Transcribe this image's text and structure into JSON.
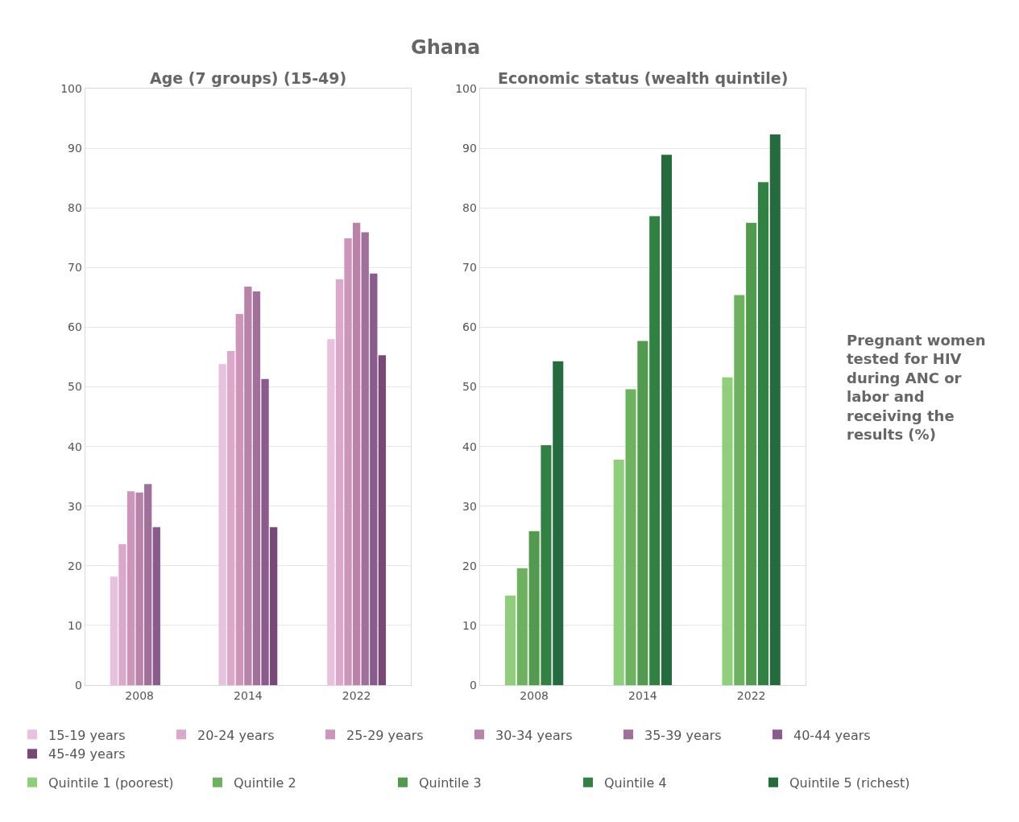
{
  "chart_data": [
    {
      "type": "bar",
      "title": "Ghana",
      "subtitle": "Age (7 groups) (15-49)",
      "categories": [
        "2008",
        "2014",
        "2022"
      ],
      "series": [
        {
          "name": "15-19 years",
          "color": "#e8c1de",
          "values": [
            18.2,
            53.8,
            58.0
          ]
        },
        {
          "name": "20-24 years",
          "color": "#dba8cb",
          "values": [
            23.6,
            56.0,
            68.0
          ]
        },
        {
          "name": "25-29 years",
          "color": "#cc95b9",
          "values": [
            32.5,
            62.2,
            74.9
          ]
        },
        {
          "name": "30-34 years",
          "color": "#b982a8",
          "values": [
            32.3,
            66.8,
            77.5
          ]
        },
        {
          "name": "35-39 years",
          "color": "#a06f9a",
          "values": [
            33.7,
            66.0,
            75.9
          ]
        },
        {
          "name": "40-44 years",
          "color": "#8b5b8d",
          "values": [
            26.5,
            51.3,
            69.0
          ]
        },
        {
          "name": "45-49 years",
          "color": "#784977",
          "values": [
            null,
            26.5,
            55.3
          ]
        }
      ],
      "ylim": [
        0,
        100
      ],
      "yticks": [
        0,
        10,
        20,
        30,
        40,
        50,
        60,
        70,
        80,
        90,
        100
      ],
      "grid": "y",
      "legend": "bottom"
    },
    {
      "type": "bar",
      "subtitle": "Economic status (wealth quintile)",
      "ylabel": "Pregnant women tested for HIV during ANC or labor and receiving the results (%)",
      "categories": [
        "2008",
        "2014",
        "2022"
      ],
      "series": [
        {
          "name": "Quintile 1 (poorest)",
          "color": "#8fcf7b",
          "values": [
            15.0,
            37.8,
            51.6
          ]
        },
        {
          "name": "Quintile 2",
          "color": "#6db35f",
          "values": [
            19.6,
            49.6,
            65.4
          ]
        },
        {
          "name": "Quintile 3",
          "color": "#529a4d",
          "values": [
            25.8,
            57.7,
            77.5
          ]
        },
        {
          "name": "Quintile 4",
          "color": "#318142",
          "values": [
            40.2,
            78.6,
            84.3
          ]
        },
        {
          "name": "Quintile 5 (richest)",
          "color": "#256b3e",
          "values": [
            54.3,
            88.9,
            92.3
          ]
        }
      ],
      "ylim": [
        0,
        100
      ],
      "yticks": [
        0,
        10,
        20,
        30,
        40,
        50,
        60,
        70,
        80,
        90,
        100
      ],
      "grid": "y",
      "legend": "bottom"
    }
  ]
}
